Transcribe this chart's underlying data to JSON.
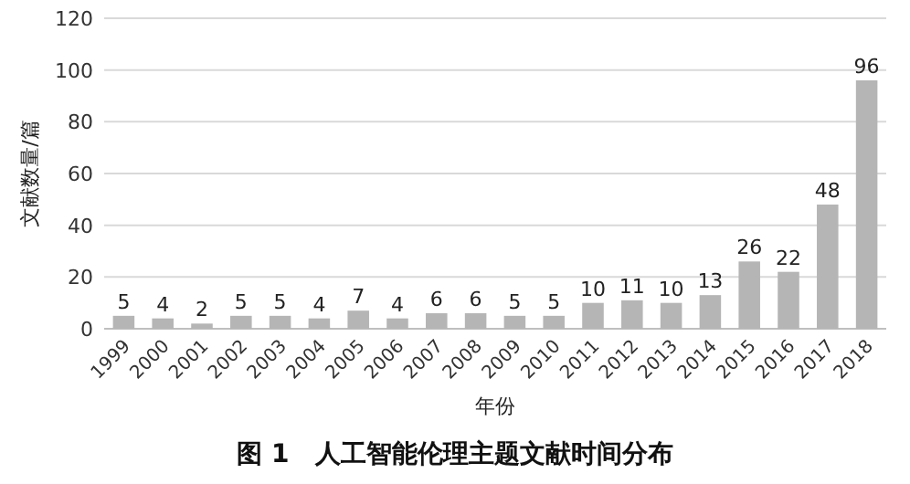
{
  "chart_data": {
    "type": "bar",
    "title": "图 1　人工智能伦理主题文献时间分布",
    "xlabel": "年份",
    "ylabel": "文献数量/篇",
    "categories": [
      "1999",
      "2000",
      "2001",
      "2002",
      "2003",
      "2004",
      "2005",
      "2006",
      "2007",
      "2008",
      "2009",
      "2010",
      "2011",
      "2012",
      "2013",
      "2014",
      "2015",
      "2016",
      "2017",
      "2018"
    ],
    "values": [
      5,
      4,
      2,
      5,
      5,
      4,
      7,
      4,
      6,
      6,
      5,
      5,
      10,
      11,
      10,
      13,
      26,
      22,
      48,
      96
    ],
    "color": "#b5b5b5",
    "ylim": [
      0,
      120
    ],
    "yticks": [
      0,
      20,
      40,
      60,
      80,
      100,
      120
    ],
    "grid": "y",
    "data_labels": true
  }
}
